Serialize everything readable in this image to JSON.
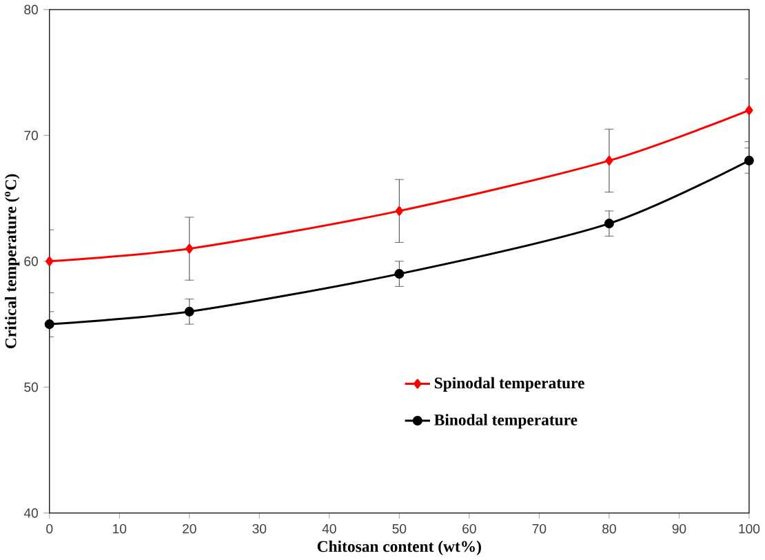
{
  "chart_data": {
    "type": "line",
    "xlabel": "Chitosan content (wt%)",
    "ylabel": "Critical temperature ($^{o}$C)",
    "x": [
      0,
      20,
      50,
      80,
      100
    ],
    "series": [
      {
        "name": "Spinodal temperature",
        "color": "#ff0000",
        "marker": "diamond",
        "values": [
          60,
          61,
          64,
          68,
          72
        ],
        "errors": [
          2.5,
          2.5,
          2.5,
          2.5,
          2.5
        ]
      },
      {
        "name": "Binodal temperature",
        "color": "#000000",
        "marker": "circle",
        "values": [
          55,
          56,
          59,
          63,
          68
        ],
        "errors": [
          1,
          1,
          1,
          1,
          1
        ]
      }
    ],
    "xlim": [
      0,
      100
    ],
    "xticks": [
      0,
      10,
      20,
      30,
      40,
      50,
      60,
      70,
      80,
      90,
      100
    ],
    "ylim": [
      40,
      80
    ],
    "yticks": [
      40,
      50,
      60,
      70,
      80
    ],
    "grid": false,
    "legend": "bottom right"
  }
}
